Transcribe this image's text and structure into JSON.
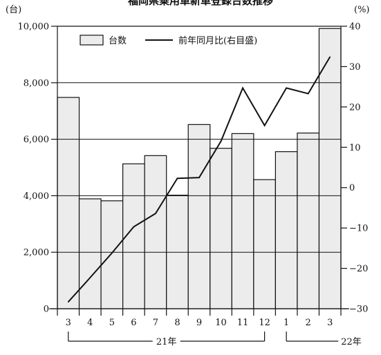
{
  "chart_data": {
    "type": "bar",
    "title": "福岡県乗用車新車登録台数推移",
    "left_axis_unit": "(台)",
    "right_axis_unit": "(%)",
    "categories": [
      "3",
      "4",
      "5",
      "6",
      "7",
      "8",
      "9",
      "10",
      "11",
      "12",
      "1",
      "2",
      "3"
    ],
    "year_groups": [
      {
        "label": "21年",
        "from_index": 0,
        "to_index": 9
      },
      {
        "label": "22年",
        "from_index": 10,
        "to_index": 12
      }
    ],
    "series": [
      {
        "name": "台数",
        "kind": "bar",
        "axis": "left",
        "values": [
          7480,
          3890,
          3820,
          5130,
          5420,
          4020,
          6520,
          5680,
          6200,
          4570,
          5560,
          6220,
          9920
        ]
      },
      {
        "name": "前年同月比(右目盛)",
        "kind": "line",
        "axis": "right",
        "values": [
          -28.3,
          -22.3,
          -16.2,
          -9.7,
          -6.4,
          2.3,
          2.5,
          11.5,
          24.7,
          15.4,
          24.7,
          23.3,
          32.4
        ]
      }
    ],
    "left_axis": {
      "ylim": [
        0,
        10000
      ],
      "ticks": [
        "0",
        "2,000",
        "4,000",
        "6,000",
        "8,000",
        "10,000"
      ]
    },
    "right_axis": {
      "ylim": [
        -30,
        40
      ],
      "ticks": [
        "−30",
        "−20",
        "−10",
        "0",
        "10",
        "20",
        "30",
        "40"
      ]
    },
    "gridlines": [
      2000,
      4000,
      6000,
      8000
    ],
    "legend_position": "top-left",
    "colors": {
      "bar_fill": "#ececec",
      "bar_stroke": "#111111",
      "line": "#111111",
      "grid": "#111111"
    }
  }
}
